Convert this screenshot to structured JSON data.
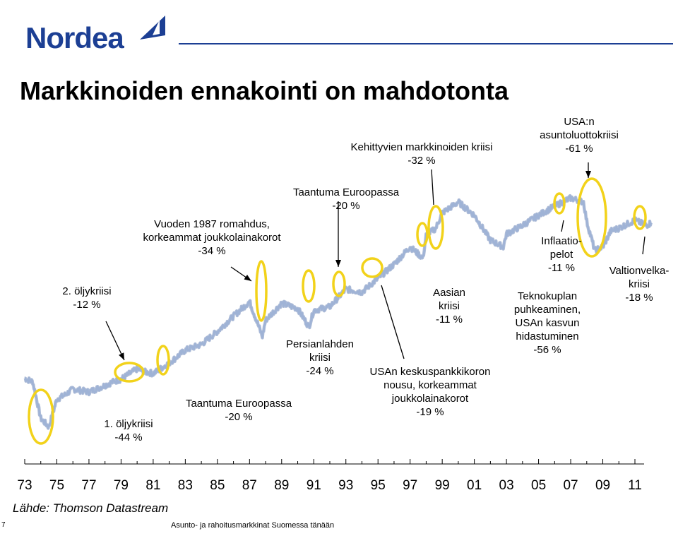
{
  "logo": {
    "text": "Nordea"
  },
  "title": "Markkinoiden ennakointi on mahdotonta",
  "source": "Lähde: Thomson Datastream",
  "page_number": "7",
  "footer": "Asunto- ja rahoitusmarkkinat Suomessa tänään",
  "colors": {
    "line": "#9fb3d6",
    "line_dark": "#6d86b8",
    "circle": "#f2d21a",
    "brand": "#1c3f94"
  },
  "chart_data": {
    "type": "line",
    "title": "",
    "xlabel": "",
    "ylabel": "",
    "scale": "log",
    "categories": [
      "73",
      "75",
      "77",
      "79",
      "81",
      "83",
      "85",
      "87",
      "89",
      "91",
      "93",
      "95",
      "97",
      "99",
      "01",
      "03",
      "05",
      "07",
      "09",
      "11"
    ],
    "series": [
      {
        "x": [
          1973,
          1973.5,
          1974,
          1974.5,
          1975,
          1975.5,
          1976,
          1977,
          1978,
          1978.5,
          1979,
          1980,
          1980.5,
          1981,
          1982,
          1983,
          1984,
          1985,
          1986,
          1987,
          1987.8,
          1988,
          1989,
          1990,
          1990.7,
          1991,
          1992,
          1993,
          1994,
          1995,
          1996,
          1997,
          1997.8,
          1998,
          1998.6,
          1999,
          2000,
          2001,
          2002,
          2002.8,
          2003,
          2004,
          2005,
          2006,
          2007,
          2007.8,
          2008,
          2008.5,
          2009,
          2009.5,
          2010,
          2011,
          2011.7,
          2012
        ],
        "y": [
          100,
          96,
          62,
          56,
          78,
          82,
          88,
          85,
          92,
          96,
          99,
          112,
          108,
          106,
          120,
          140,
          150,
          175,
          210,
          250,
          165,
          200,
          245,
          230,
          185,
          225,
          235,
          290,
          280,
          330,
          390,
          480,
          420,
          550,
          600,
          720,
          820,
          700,
          520,
          480,
          560,
          620,
          700,
          780,
          860,
          820,
          650,
          460,
          480,
          580,
          600,
          660,
          620,
          640
        ]
      }
    ],
    "annotations": [
      {
        "id": "oil2",
        "lines": [
          "2. öljykriisi",
          "-12 %"
        ]
      },
      {
        "id": "oil1",
        "lines": [
          "1. öljykriisi",
          "-44 %"
        ]
      },
      {
        "id": "crash87",
        "lines": [
          "Vuoden 1987 romahdus,",
          "korkeammat joukkolainakorot",
          "-34 %"
        ]
      },
      {
        "id": "eur_recession_a",
        "lines": [
          "Taantuma Euroopassa",
          "-20 %"
        ]
      },
      {
        "id": "eur_recession_b",
        "lines": [
          "Taantuma Euroopassa",
          "-20 %"
        ]
      },
      {
        "id": "gulf",
        "lines": [
          "Persianlahden",
          "kriisi",
          "-24 %"
        ]
      },
      {
        "id": "emerging",
        "lines": [
          "Kehittyvien markkinoiden kriisi",
          "-32 %"
        ]
      },
      {
        "id": "asia",
        "lines": [
          "Aasian",
          "kriisi",
          "-11 %"
        ]
      },
      {
        "id": "fed",
        "lines": [
          "USAn keskuspankkikoron",
          "nousu, korkeammat",
          "joukkolainakorot",
          "-19 %"
        ]
      },
      {
        "id": "inflation",
        "lines": [
          "Inflaatio-",
          "pelot",
          "-11 %"
        ]
      },
      {
        "id": "tech",
        "lines": [
          "Teknokuplan",
          "puhkeaminen,",
          "USAn kasvun",
          "hidastuminen",
          "-56 %"
        ]
      },
      {
        "id": "housing",
        "lines": [
          "USA:n",
          "asuntoluottokriisi",
          "-61 %"
        ]
      },
      {
        "id": "sovereign",
        "lines": [
          "Valtionvelka-",
          "kriisi",
          "-18 %"
        ]
      }
    ]
  }
}
